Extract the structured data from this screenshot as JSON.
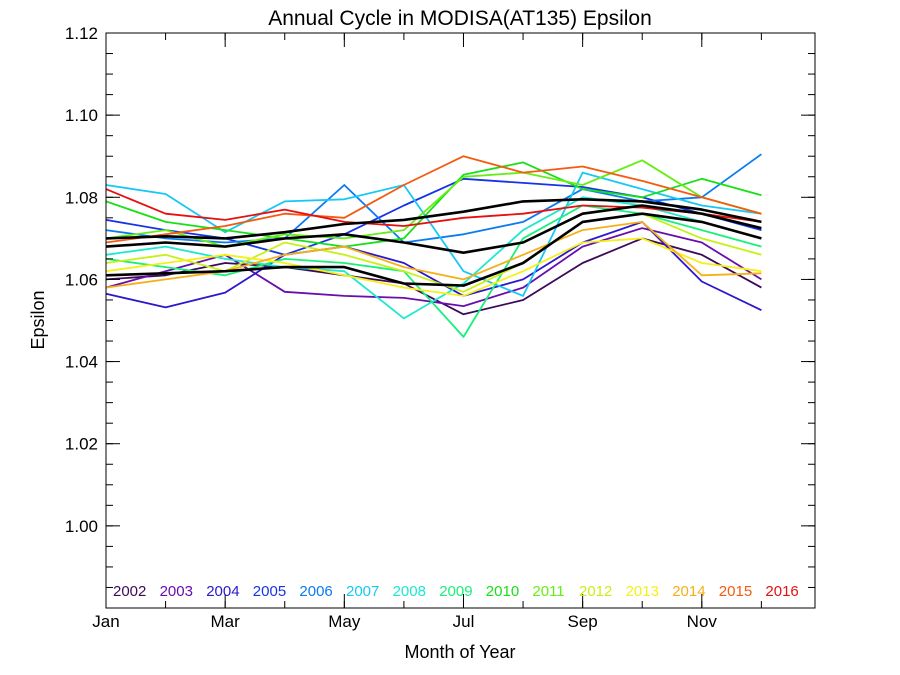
{
  "chart_data": {
    "type": "line",
    "title": "Annual Cycle in MODISA(AT135) Epsilon",
    "xlabel": "Month of Year",
    "ylabel": "Epsilon",
    "xlim": [
      1,
      12.9
    ],
    "ylim": [
      0.98,
      1.12
    ],
    "x_ticks": [
      {
        "value": 1,
        "label": "Jan"
      },
      {
        "value": 3,
        "label": "Mar"
      },
      {
        "value": 5,
        "label": "May"
      },
      {
        "value": 7,
        "label": "Jul"
      },
      {
        "value": 9,
        "label": "Sep"
      },
      {
        "value": 11,
        "label": "Nov"
      }
    ],
    "y_ticks": [
      {
        "value": 1.0,
        "label": "1.00"
      },
      {
        "value": 1.02,
        "label": "1.02"
      },
      {
        "value": 1.04,
        "label": "1.04"
      },
      {
        "value": 1.06,
        "label": "1.06"
      },
      {
        "value": 1.08,
        "label": "1.08"
      },
      {
        "value": 1.1,
        "label": "1.10"
      },
      {
        "value": 1.12,
        "label": "1.12"
      }
    ],
    "legend_position": "bottom",
    "grid": false,
    "x": [
      1,
      2,
      3,
      4,
      5,
      6,
      7,
      8,
      9,
      10,
      11,
      12
    ],
    "series": [
      {
        "name": "2002",
        "color": "#3d0a5a",
        "values": [
          1.06,
          1.061,
          1.064,
          1.063,
          1.061,
          1.059,
          1.0515,
          1.055,
          1.064,
          1.07,
          1.066,
          1.058
        ]
      },
      {
        "name": "2003",
        "color": "#6a0dad",
        "values": [
          1.058,
          1.062,
          1.066,
          1.057,
          1.056,
          1.0555,
          1.0535,
          1.058,
          1.068,
          1.0725,
          1.069,
          1.06
        ]
      },
      {
        "name": "2004",
        "color": "#2b18cc",
        "values": [
          1.0565,
          1.0532,
          1.0568,
          1.066,
          1.068,
          1.064,
          1.056,
          1.06,
          1.069,
          1.074,
          1.0595,
          1.0525
        ]
      },
      {
        "name": "2005",
        "color": "#1633e6",
        "values": [
          1.0745,
          1.072,
          1.07,
          1.066,
          1.071,
          1.078,
          1.0845,
          1.0835,
          1.0825,
          1.08,
          1.076,
          1.072
        ]
      },
      {
        "name": "2006",
        "color": "#0a7cf0",
        "values": [
          1.072,
          1.07,
          1.069,
          1.07,
          1.083,
          1.069,
          1.071,
          1.074,
          1.082,
          1.079,
          1.08,
          1.0905
        ]
      },
      {
        "name": "2007",
        "color": "#17c8f5",
        "values": [
          1.083,
          1.0808,
          1.0715,
          1.079,
          1.0795,
          1.083,
          1.062,
          1.056,
          1.086,
          1.082,
          1.078,
          1.076
        ]
      },
      {
        "name": "2008",
        "color": "#1de8d0",
        "values": [
          1.066,
          1.068,
          1.065,
          1.063,
          1.062,
          1.0505,
          1.059,
          1.072,
          1.08,
          1.078,
          1.074,
          1.07
        ]
      },
      {
        "name": "2009",
        "color": "#18f07a",
        "values": [
          1.065,
          1.063,
          1.061,
          1.065,
          1.064,
          1.062,
          1.046,
          1.07,
          1.078,
          1.076,
          1.072,
          1.068
        ]
      },
      {
        "name": "2010",
        "color": "#18e018",
        "values": [
          1.079,
          1.074,
          1.072,
          1.07,
          1.068,
          1.07,
          1.0855,
          1.0885,
          1.082,
          1.08,
          1.0845,
          1.0805
        ]
      },
      {
        "name": "2011",
        "color": "#66ee14",
        "values": [
          1.07,
          1.072,
          1.068,
          1.071,
          1.07,
          1.072,
          1.085,
          1.086,
          1.083,
          1.089,
          1.08,
          1.076
        ]
      },
      {
        "name": "2012",
        "color": "#c8f018",
        "values": [
          1.064,
          1.066,
          1.062,
          1.069,
          1.066,
          1.062,
          1.057,
          1.064,
          1.074,
          1.076,
          1.07,
          1.066
        ]
      },
      {
        "name": "2013",
        "color": "#f5f018",
        "values": [
          1.062,
          1.064,
          1.066,
          1.064,
          1.061,
          1.058,
          1.056,
          1.062,
          1.069,
          1.07,
          1.064,
          1.062
        ]
      },
      {
        "name": "2014",
        "color": "#f5b018",
        "values": [
          1.058,
          1.06,
          1.062,
          1.066,
          1.068,
          1.063,
          1.06,
          1.066,
          1.072,
          1.074,
          1.061,
          1.0615
        ]
      },
      {
        "name": "2015",
        "color": "#f55a10",
        "values": [
          1.069,
          1.071,
          1.073,
          1.076,
          1.075,
          1.083,
          1.09,
          1.086,
          1.0875,
          1.084,
          1.08,
          1.076
        ]
      },
      {
        "name": "2016",
        "color": "#e61010",
        "values": [
          1.082,
          1.076,
          1.0745,
          1.077,
          1.074,
          1.073,
          1.075,
          1.076,
          1.078,
          1.0775,
          1.076,
          1.074
        ]
      },
      {
        "name": "",
        "color": "#000000",
        "values": [
          1.068,
          1.069,
          1.068,
          1.07,
          1.071,
          1.069,
          1.0665,
          1.069,
          1.076,
          1.078,
          1.076,
          1.0725
        ]
      },
      {
        "name": "",
        "color": "#000000",
        "values": [
          1.061,
          1.0615,
          1.062,
          1.063,
          1.063,
          1.059,
          1.0585,
          1.064,
          1.074,
          1.076,
          1.074,
          1.07
        ]
      },
      {
        "name": "",
        "color": "#000000",
        "values": [
          1.07,
          1.0705,
          1.07,
          1.0715,
          1.0735,
          1.0745,
          1.0765,
          1.079,
          1.0795,
          1.079,
          1.077,
          1.074
        ]
      }
    ]
  }
}
